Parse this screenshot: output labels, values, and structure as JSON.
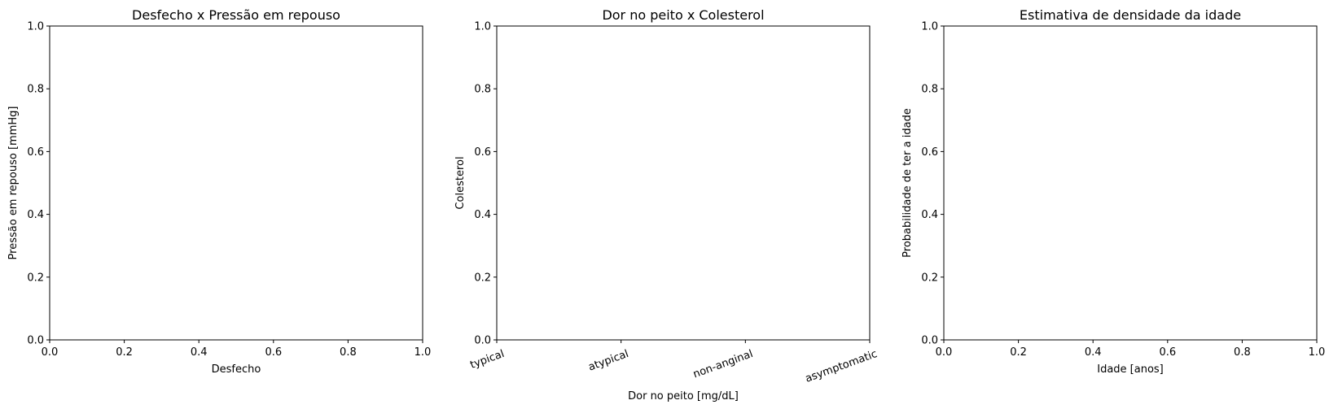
{
  "chart_data": [
    {
      "type": "scatter",
      "title": "Desfecho x Pressão em repouso",
      "xlabel": "Desfecho",
      "ylabel": "Pressão em repouso [mmHg]",
      "xlim": [
        0,
        1
      ],
      "ylim": [
        0,
        1
      ],
      "x_ticks": [
        "0.0",
        "0.2",
        "0.4",
        "0.6",
        "0.8",
        "1.0"
      ],
      "y_ticks": [
        "0.0",
        "0.2",
        "0.4",
        "0.6",
        "0.8",
        "1.0"
      ],
      "series": [],
      "grid": false
    },
    {
      "type": "scatter",
      "title": "Dor no peito x Colesterol",
      "xlabel": "Dor no peito [mg/dL]",
      "ylabel": "Colesterol",
      "categories": [
        "typical",
        "atypical",
        "non-anginal",
        "asymptomatic"
      ],
      "x_tick_rotation_deg": 20,
      "ylim": [
        0,
        1
      ],
      "y_ticks": [
        "0.0",
        "0.2",
        "0.4",
        "0.6",
        "0.8",
        "1.0"
      ],
      "series": [],
      "grid": false
    },
    {
      "type": "area",
      "title": "Estimativa de densidade da idade",
      "xlabel": "Idade [anos]",
      "ylabel": "Probabilidade de ter a idade",
      "xlim": [
        0,
        1
      ],
      "ylim": [
        0,
        1
      ],
      "x_ticks": [
        "0.0",
        "0.2",
        "0.4",
        "0.6",
        "0.8",
        "1.0"
      ],
      "y_ticks": [
        "0.0",
        "0.2",
        "0.4",
        "0.6",
        "0.8",
        "1.0"
      ],
      "series": [],
      "grid": false
    }
  ]
}
